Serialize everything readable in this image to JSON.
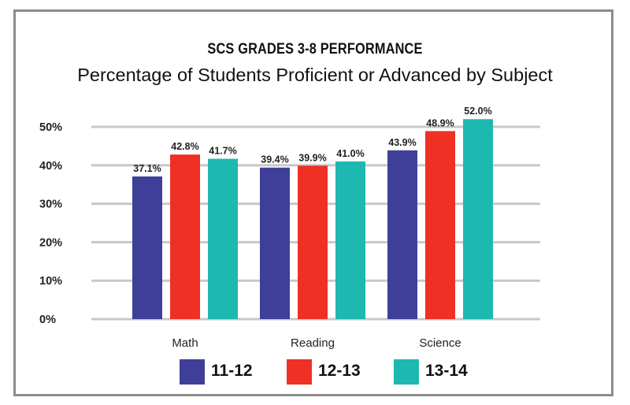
{
  "chart_data": {
    "type": "bar",
    "title": "SCS GRADES 3-8 PERFORMANCE",
    "subtitle": "Percentage of Students Proficient or Advanced by Subject",
    "categories": [
      "Math",
      "Reading",
      "Science"
    ],
    "series": [
      {
        "name": "11-12",
        "color": "#3f3f99",
        "values": [
          37.1,
          39.4,
          43.9
        ],
        "labels": [
          "37.1%",
          "39.4%",
          "43.9%"
        ]
      },
      {
        "name": "12-13",
        "color": "#ee3124",
        "values": [
          42.8,
          39.9,
          48.9
        ],
        "labels": [
          "42.8%",
          "39.9%",
          "48.9%"
        ]
      },
      {
        "name": "13-14",
        "color": "#1db8b0",
        "values": [
          41.7,
          41.0,
          52.0
        ],
        "labels": [
          "41.7%",
          "41.0%",
          "52.0%"
        ]
      }
    ],
    "yticks": [
      0,
      10,
      20,
      30,
      40,
      50
    ],
    "ytick_labels": [
      "0%",
      "10%",
      "20%",
      "30%",
      "40%",
      "50%"
    ],
    "ylim": [
      0,
      50
    ],
    "xlabel": "",
    "ylabel": "",
    "grid": true,
    "legend_position": "bottom",
    "gridline_color": "#c8c8c8"
  }
}
